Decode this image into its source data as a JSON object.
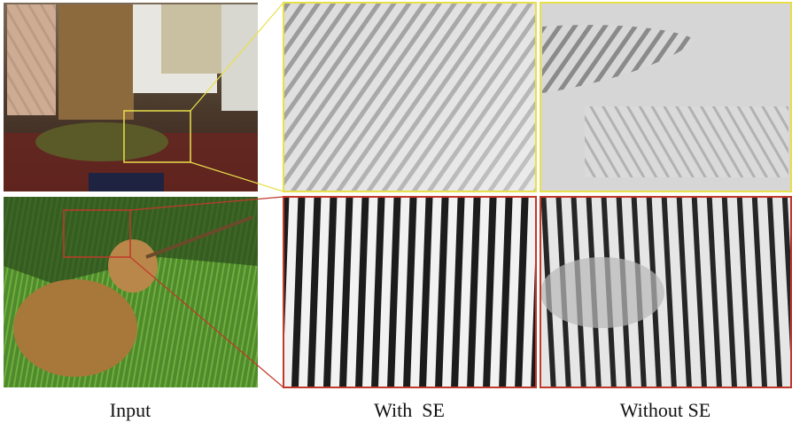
{
  "captions": [
    "Input",
    "With  SE",
    "Without SE"
  ]
}
